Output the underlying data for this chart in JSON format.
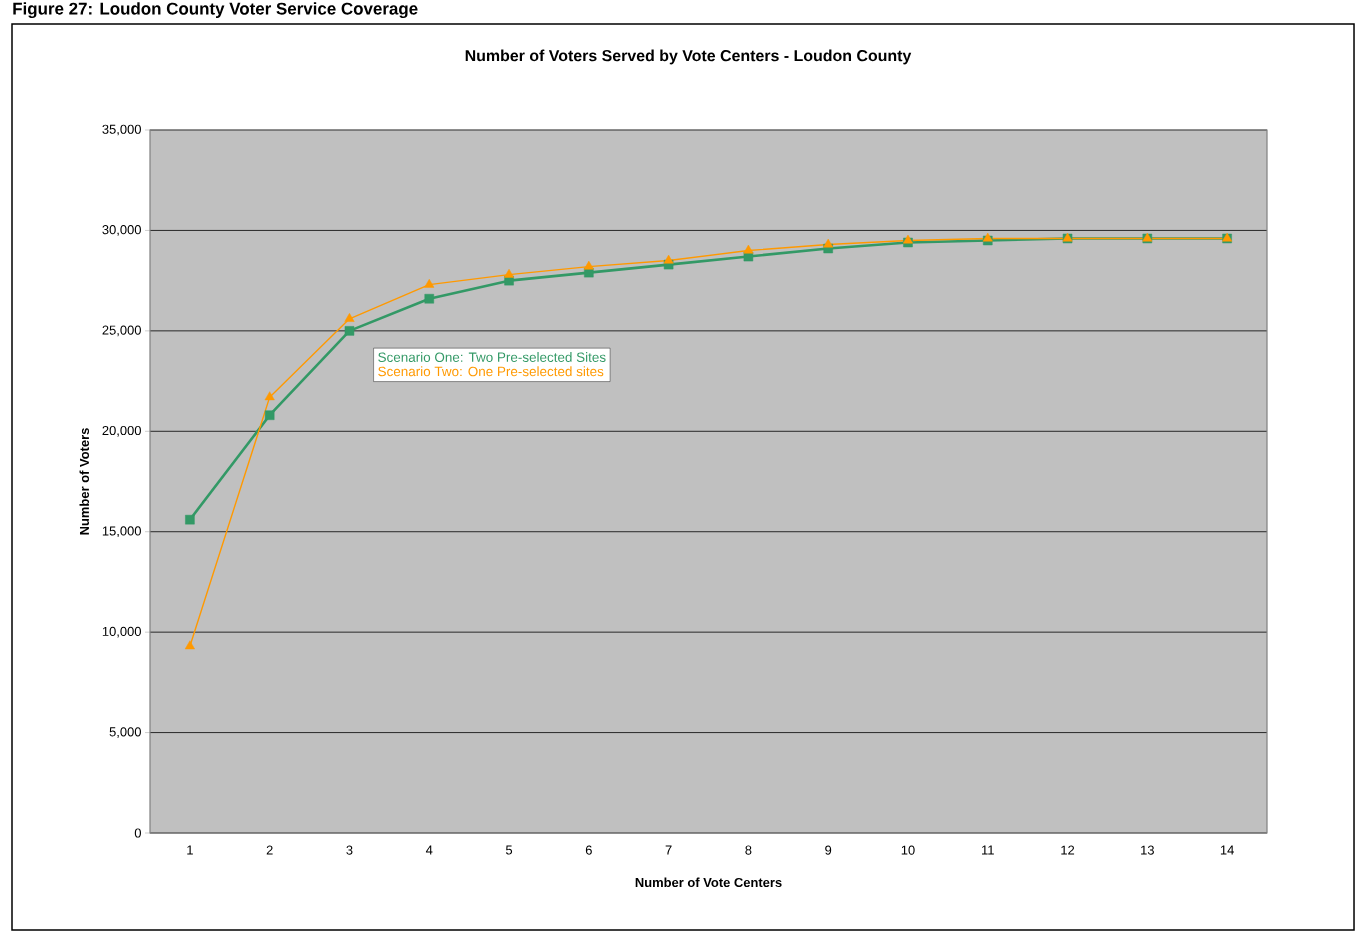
{
  "chart_data": {
    "type": "line",
    "title": "Number of Voters Served by Vote Centers - Loudon County",
    "xlabel": "Number of Vote Centers",
    "ylabel": "Number of Voters",
    "annotations": [
      "Figure 27: Loudon County Voter Service Coverage"
    ],
    "categories": [
      "1",
      "2",
      "3",
      "4",
      "5",
      "6",
      "7",
      "8",
      "9",
      "10",
      "11",
      "12",
      "13",
      "14"
    ],
    "series": [
      {
        "name": "Scenario One: Two Pre-selected Sites",
        "color": "#339966",
        "marker": "square",
        "values": [
          15600,
          20800,
          25000,
          26600,
          27500,
          27900,
          28300,
          28700,
          29100,
          29400,
          29500,
          29600,
          29600,
          29600
        ]
      },
      {
        "name": "Scenario Two: One Pre-selected sites",
        "color": "#ff9900",
        "marker": "triangle",
        "values": [
          9300,
          21700,
          25600,
          27300,
          27800,
          28200,
          28500,
          29000,
          29300,
          29500,
          29600,
          29600,
          29600,
          29600
        ]
      }
    ],
    "ylim": [
      0,
      35000
    ],
    "yticks": [
      {
        "value": 0,
        "label": "0"
      },
      {
        "value": 5000,
        "label": "5,000"
      },
      {
        "value": 10000,
        "label": "10,000"
      },
      {
        "value": 15000,
        "label": "15,000"
      },
      {
        "value": 20000,
        "label": "20,000"
      },
      {
        "value": 25000,
        "label": "25,000"
      },
      {
        "value": 30000,
        "label": "30,000"
      },
      {
        "value": 35000,
        "label": "35,000"
      }
    ],
    "grid": "y",
    "legend": "top left",
    "line_style": "solid"
  }
}
